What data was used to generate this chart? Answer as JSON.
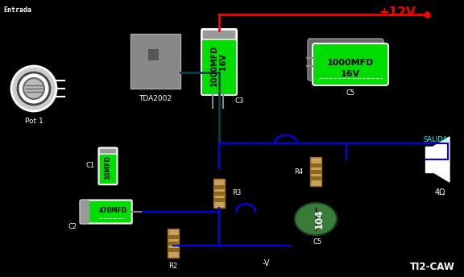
{
  "bg_color": "#000000",
  "title_text": "TI2-CAW",
  "entrada_label": "Entrada",
  "salida_label": "SALIDA",
  "pot_label": "Pot 1",
  "tda_label": "TDA2002",
  "c3_label": "C3",
  "c4_label": "C5",
  "c1_label": "C1",
  "c2_label": "C2",
  "c5_label": "C5",
  "r2_label": "R2",
  "r3_label": "R3",
  "r4_label": "R4",
  "gnd_label": "-V",
  "ohm_label": "4Ω",
  "cap3_text1": "1000MFD",
  "cap3_text2": "16V",
  "cap4_text1": "1000MFD",
  "cap4_text2": "16V",
  "cap_c1_text": "10MFD",
  "cap_c2_text": "470MFD",
  "cap_c5_text": "104",
  "vcc_text": "+12V",
  "wire_red": "#ff0000",
  "wire_blue": "#0000ff",
  "wire_dark_teal": "#004444",
  "cap_green_bright": "#00dd00",
  "cap_green_dark": "#007700",
  "cap_gray": "#999999",
  "cap_gray_dark": "#666666",
  "resistor_tan": "#c8a060",
  "resistor_band": "#8b6914",
  "resistor_dark": "#6b4c0a",
  "tda_gray_light": "#aaaaaa",
  "tda_gray_mid": "#888888",
  "tda_gray_dark": "#555555",
  "cap_c5_green": "#3a7a3a",
  "cap_c5_dark": "#1a4a1a",
  "pot_outer": "#cccccc",
  "pot_mid": "#ffffff",
  "pot_inner": "#aaaaaa"
}
